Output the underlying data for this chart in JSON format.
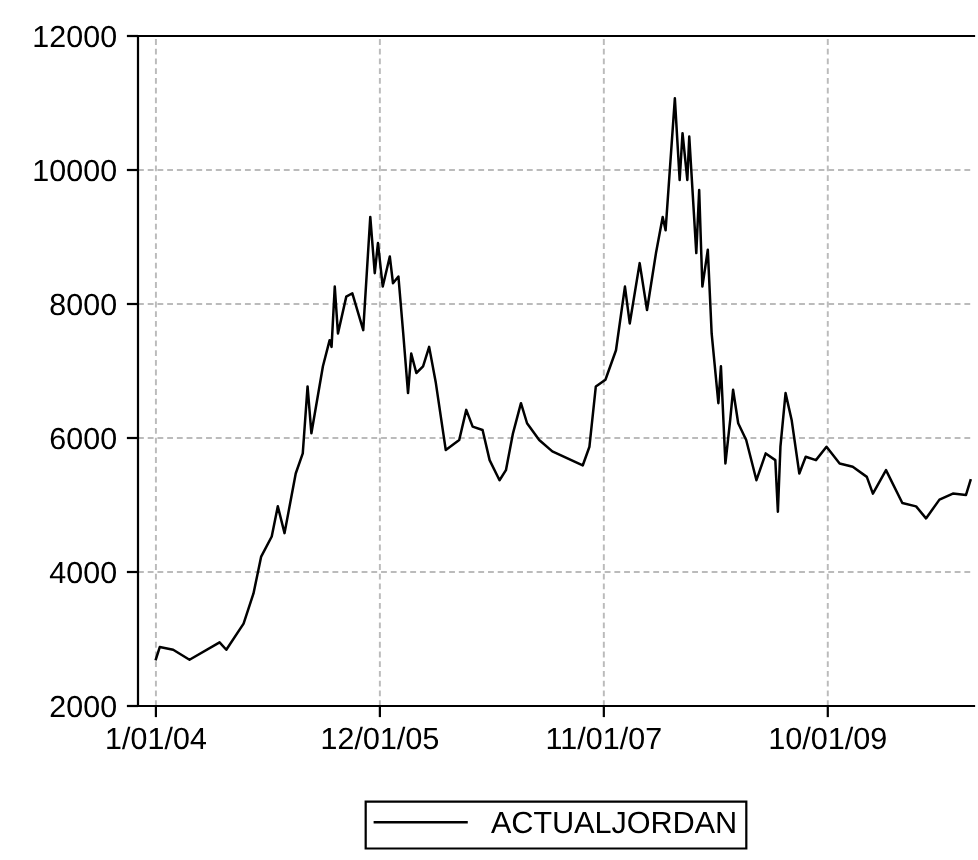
{
  "chart_data": {
    "type": "line",
    "xlim": [
      "2003-11-06",
      "2011-01-01"
    ],
    "ylim": [
      2000,
      12000
    ],
    "yticks": [
      2000,
      4000,
      6000,
      8000,
      10000,
      12000
    ],
    "xticks": [
      {
        "value": "2004-01-01",
        "label": "1/01/04"
      },
      {
        "value": "2005-12-01",
        "label": "12/01/05"
      },
      {
        "value": "2007-11-01",
        "label": "11/01/07"
      },
      {
        "value": "2009-10-01",
        "label": "10/01/09"
      }
    ],
    "grid": true,
    "legend": "bottom",
    "line_style": "solid",
    "marker": "none",
    "series": [
      {
        "name": "ACTUALJORDAN",
        "color": "#000000",
        "x": [
          "2004-01-01",
          "2004-01-13",
          "2004-02-24",
          "2004-04-15",
          "2004-07-18",
          "2004-08-08",
          "2004-10-01",
          "2004-11-01",
          "2004-11-25",
          "2004-12-28",
          "2005-01-16",
          "2005-02-06",
          "2005-03-13",
          "2005-04-04",
          "2005-04-19",
          "2005-05-01",
          "2005-06-06",
          "2005-06-27",
          "2005-07-03",
          "2005-07-13",
          "2005-07-23",
          "2005-08-18",
          "2005-09-06",
          "2005-10-10",
          "2005-11-01",
          "2005-11-15",
          "2005-11-25",
          "2005-12-10",
          "2006-01-01",
          "2006-01-11",
          "2006-01-28",
          "2006-02-12",
          "2006-02-27",
          "2006-03-09",
          "2006-03-25",
          "2006-04-15",
          "2006-05-04",
          "2006-05-25",
          "2006-06-25",
          "2006-08-06",
          "2006-08-28",
          "2006-09-17",
          "2006-10-18",
          "2006-11-09",
          "2006-12-10",
          "2006-12-30",
          "2007-01-21",
          "2007-02-15",
          "2007-03-06",
          "2007-04-13",
          "2007-05-24",
          "2007-08-27",
          "2007-09-17",
          "2007-10-07",
          "2007-11-06",
          "2007-12-09",
          "2008-01-06",
          "2008-01-21",
          "2008-02-21",
          "2008-03-15",
          "2008-04-12",
          "2008-05-03",
          "2008-05-12",
          "2008-06-10",
          "2008-06-25",
          "2008-07-04",
          "2008-07-19",
          "2008-07-25",
          "2008-08-16",
          "2008-08-25",
          "2008-09-04",
          "2008-09-21",
          "2008-10-03",
          "2008-10-24",
          "2008-11-01",
          "2008-11-15",
          "2008-11-30",
          "2008-12-09",
          "2008-12-25",
          "2009-01-19",
          "2009-02-20",
          "2009-03-21",
          "2009-04-20",
          "2009-04-28",
          "2009-05-06",
          "2009-05-22",
          "2009-06-10",
          "2009-07-04",
          "2009-07-24",
          "2009-08-25",
          "2009-09-27",
          "2009-11-07",
          "2009-12-18",
          "2010-01-31",
          "2010-02-19",
          "2010-04-01",
          "2010-05-22",
          "2010-07-04",
          "2010-08-04",
          "2010-09-15",
          "2010-10-27",
          "2010-12-07",
          "2010-12-21"
        ],
        "values": [
          2700,
          2880,
          2840,
          2690,
          2950,
          2840,
          3230,
          3680,
          4230,
          4530,
          4980,
          4580,
          5470,
          5770,
          6770,
          6070,
          7070,
          7460,
          7360,
          8260,
          7560,
          8110,
          8160,
          7610,
          9300,
          8460,
          8910,
          8260,
          8710,
          8310,
          8410,
          7560,
          6670,
          7260,
          6970,
          7070,
          7360,
          6820,
          5820,
          5970,
          6420,
          6170,
          6120,
          5670,
          5370,
          5520,
          6070,
          6520,
          6220,
          5970,
          5800,
          5590,
          5870,
          6770,
          6870,
          7310,
          8260,
          7710,
          8610,
          7910,
          8760,
          9300,
          9100,
          11070,
          9850,
          10550,
          9850,
          10500,
          8760,
          9700,
          8260,
          8810,
          7560,
          6520,
          7070,
          5620,
          6270,
          6720,
          6220,
          5970,
          5370,
          5770,
          5670,
          4900,
          5870,
          6670,
          6270,
          5470,
          5720,
          5670,
          5870,
          5620,
          5570,
          5420,
          5170,
          5520,
          5030,
          4980,
          4800,
          5080,
          5170,
          5150,
          5370
        ]
      }
    ]
  }
}
